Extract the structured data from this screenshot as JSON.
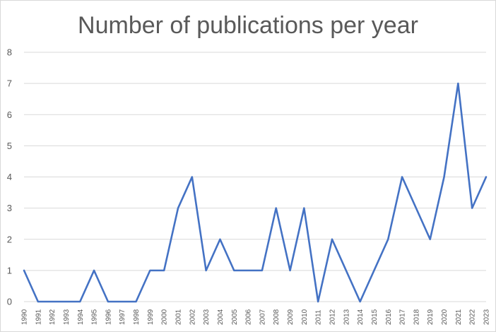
{
  "chart_data": {
    "type": "line",
    "title": "Number of publications per year",
    "xlabel": "",
    "ylabel": "",
    "x": [
      "1990",
      "1991",
      "1992",
      "1993",
      "1994",
      "1995",
      "1996",
      "1997",
      "1998",
      "1999",
      "2000",
      "2001",
      "2002",
      "2003",
      "2004",
      "2005",
      "2006",
      "2007",
      "2008",
      "2009",
      "2010",
      "2011",
      "2012",
      "2013",
      "2014",
      "2015",
      "2016",
      "2017",
      "2018",
      "2019",
      "2020",
      "2021",
      "2022",
      "2023"
    ],
    "series": [
      {
        "values": [
          1,
          0,
          0,
          0,
          0,
          1,
          0,
          0,
          0,
          1,
          1,
          3,
          4,
          1,
          2,
          1,
          1,
          1,
          3,
          1,
          3,
          0,
          2,
          1,
          0,
          1,
          2,
          4,
          3,
          2,
          4,
          7,
          3,
          4
        ],
        "color": "#4472c4"
      }
    ],
    "ylim": [
      0,
      8
    ],
    "yticks": [
      "0",
      "1",
      "2",
      "3",
      "4",
      "5",
      "6",
      "7",
      "8"
    ],
    "grid": true,
    "legend": "none"
  }
}
